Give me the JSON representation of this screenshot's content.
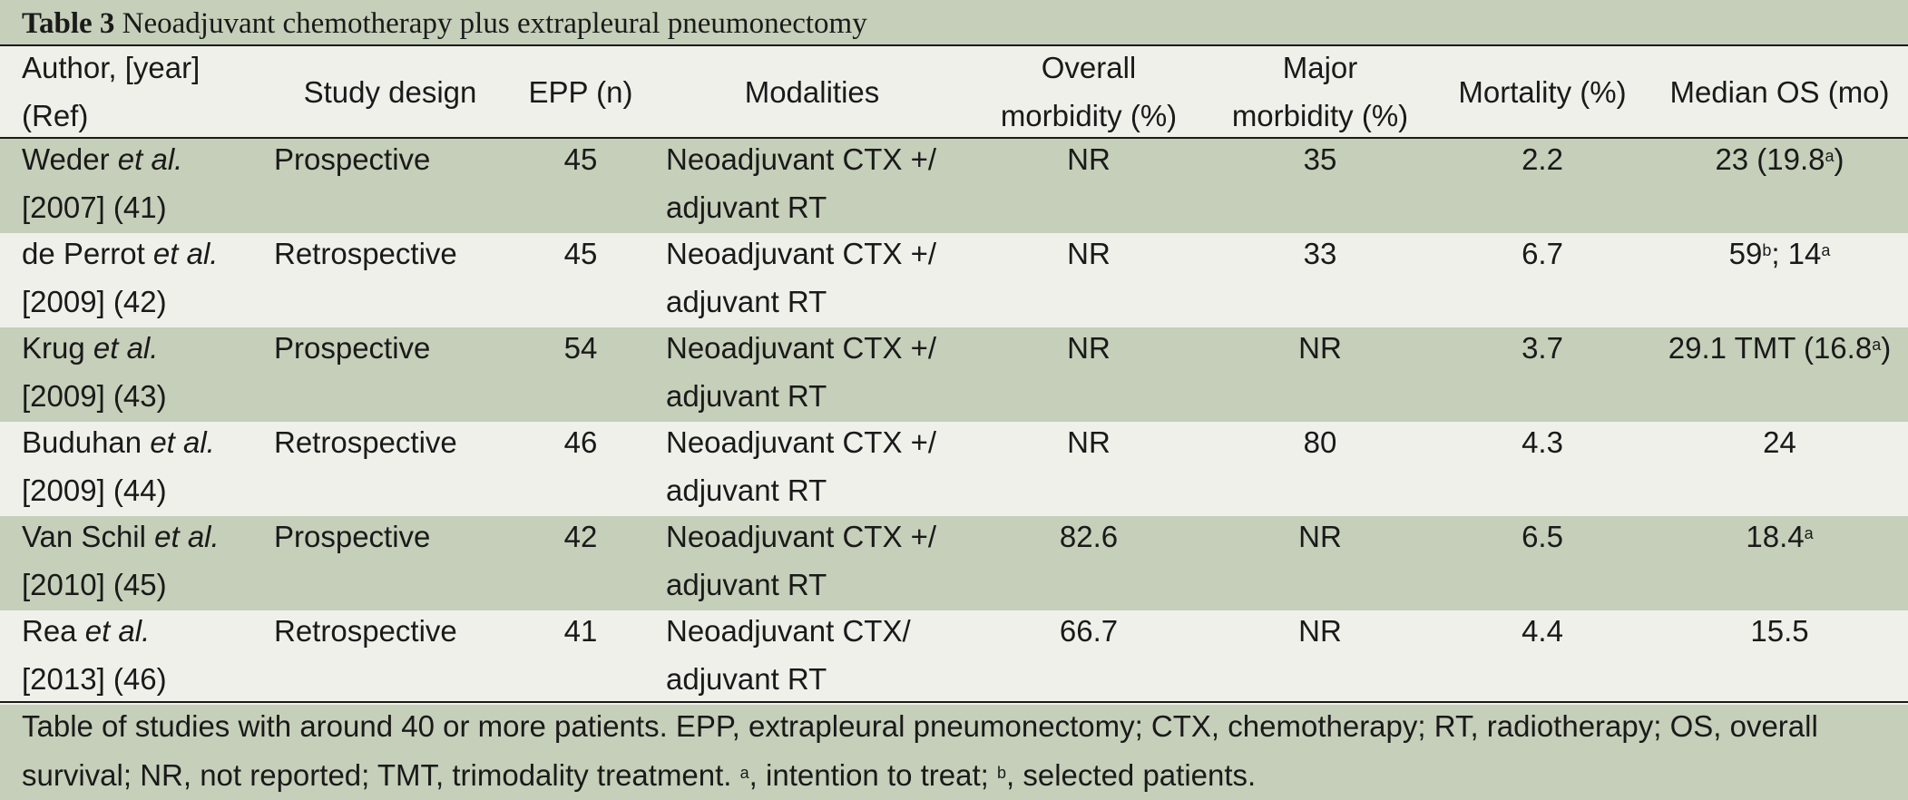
{
  "caption": {
    "label": "Table 3",
    "title": "Neoadjuvant chemotherapy plus extrapleural pneumonectomy"
  },
  "header": {
    "author": [
      "Author, [year]",
      "(Ref)"
    ],
    "design": "Study design",
    "epp": "EPP (n)",
    "modalities": "Modalities",
    "overall": [
      "Overall",
      "morbidity (%)"
    ],
    "major": [
      "Major",
      "morbidity (%)"
    ],
    "mortality": "Mortality (%)",
    "os": "Median OS (mo)"
  },
  "rows": [
    {
      "author_name": "Weder ",
      "author_etal": "et al.",
      "author_ref": "[2007] (41)",
      "design": "Prospective",
      "epp": "45",
      "mod1": "Neoadjuvant CTX +/",
      "mod2": "adjuvant RT",
      "overall": "NR",
      "major": "35",
      "mortality": "2.2",
      "os_pre": "23 (19.8",
      "os_sup1": "a",
      "os_mid": ")",
      "os_sup2": "",
      "os_post": ""
    },
    {
      "author_name": "de Perrot ",
      "author_etal": "et al.",
      "author_ref": "[2009] (42)",
      "design": "Retrospective",
      "epp": "45",
      "mod1": "Neoadjuvant CTX +/",
      "mod2": "adjuvant RT",
      "overall": "NR",
      "major": "33",
      "mortality": "6.7",
      "os_pre": "59",
      "os_sup1": "b",
      "os_mid": "; 14",
      "os_sup2": "a",
      "os_post": ""
    },
    {
      "author_name": "Krug ",
      "author_etal": "et al.",
      "author_ref": "[2009] (43)",
      "design": "Prospective",
      "epp": "54",
      "mod1": "Neoadjuvant CTX +/",
      "mod2": "adjuvant RT",
      "overall": "NR",
      "major": "NR",
      "mortality": "3.7",
      "os_pre": "29.1 TMT (16.8",
      "os_sup1": "a",
      "os_mid": ")",
      "os_sup2": "",
      "os_post": ""
    },
    {
      "author_name": "Buduhan ",
      "author_etal": "et al.",
      "author_ref": "[2009] (44)",
      "design": "Retrospective",
      "epp": "46",
      "mod1": "Neoadjuvant CTX +/",
      "mod2": "adjuvant RT",
      "overall": "NR",
      "major": "80",
      "mortality": "4.3",
      "os_pre": "24",
      "os_sup1": "",
      "os_mid": "",
      "os_sup2": "",
      "os_post": ""
    },
    {
      "author_name": "Van Schil ",
      "author_etal": "et al.",
      "author_ref": "[2010] (45)",
      "design": "Prospective",
      "epp": "42",
      "mod1": "Neoadjuvant CTX +/",
      "mod2": "adjuvant RT",
      "overall": "82.6",
      "major": "NR",
      "mortality": "6.5",
      "os_pre": "18.4",
      "os_sup1": "a",
      "os_mid": "",
      "os_sup2": "",
      "os_post": ""
    },
    {
      "author_name": "Rea ",
      "author_etal": "et al.",
      "author_ref": "[2013] (46)",
      "design": "Retrospective",
      "epp": "41",
      "mod1": "Neoadjuvant CTX/",
      "mod2": "adjuvant RT",
      "overall": "66.7",
      "major": "NR",
      "mortality": "4.4",
      "os_pre": "15.5",
      "os_sup1": "",
      "os_mid": "",
      "os_sup2": "",
      "os_post": ""
    }
  ],
  "footnote": {
    "text1": "Table of studies with around 40 or more patients. EPP, extrapleural pneumonectomy; CTX, chemotherapy; RT, radiotherapy; OS, overall survival; NR, not reported; TMT, trimodality treatment. ",
    "sup_a": "a",
    "text2": ", intention to treat; ",
    "sup_b": "b",
    "text3": ", selected patients."
  }
}
